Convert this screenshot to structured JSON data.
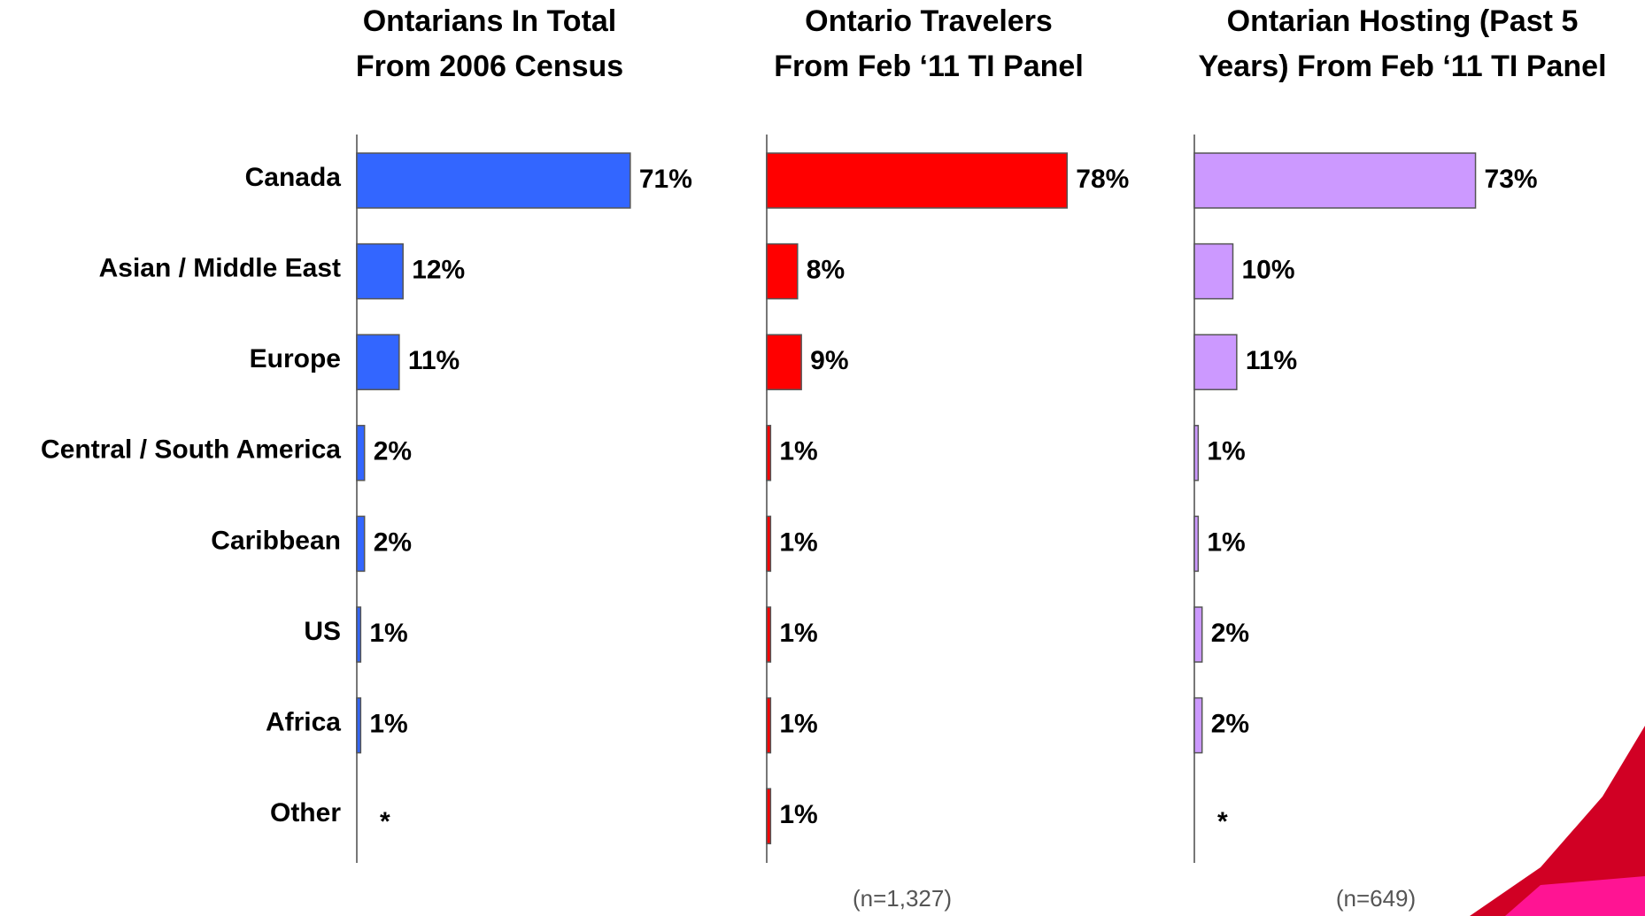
{
  "chart_data": [
    {
      "type": "hbar",
      "title": [
        "Ontarians In Total",
        "From 2006 Census"
      ],
      "categories": [
        "Canada",
        "Asian / Middle East",
        "Europe",
        "Central / South America",
        "Caribbean",
        "US",
        "Africa",
        "Other"
      ],
      "values": [
        71,
        12,
        11,
        2,
        2,
        1,
        1,
        null
      ],
      "value_labels": [
        "71%",
        "12%",
        "11%",
        "2%",
        "2%",
        "1%",
        "1%",
        "*"
      ],
      "color": "#3366ff",
      "xlim": [
        0,
        100
      ]
    },
    {
      "type": "hbar",
      "title": [
        "Ontario Travelers",
        "From Feb ‘11 TI Panel"
      ],
      "values": [
        78,
        8,
        9,
        1,
        1,
        1,
        1,
        1
      ],
      "value_labels": [
        "78%",
        "8%",
        "9%",
        "1%",
        "1%",
        "1%",
        "1%",
        "1%"
      ],
      "color": "#ff0000",
      "xlim": [
        0,
        100
      ],
      "note": "(n=1,327)"
    },
    {
      "type": "hbar",
      "title": [
        "Ontarian Hosting  (Past 5",
        "Years) From Feb ‘11 TI Panel"
      ],
      "values": [
        73,
        10,
        11,
        1,
        1,
        2,
        2,
        null
      ],
      "value_labels": [
        "73%",
        "10%",
        "11%",
        "1%",
        "1%",
        "2%",
        "2%",
        "*"
      ],
      "color": "#cc99ff",
      "xlim": [
        0,
        100
      ],
      "note": "(n=649)"
    }
  ]
}
